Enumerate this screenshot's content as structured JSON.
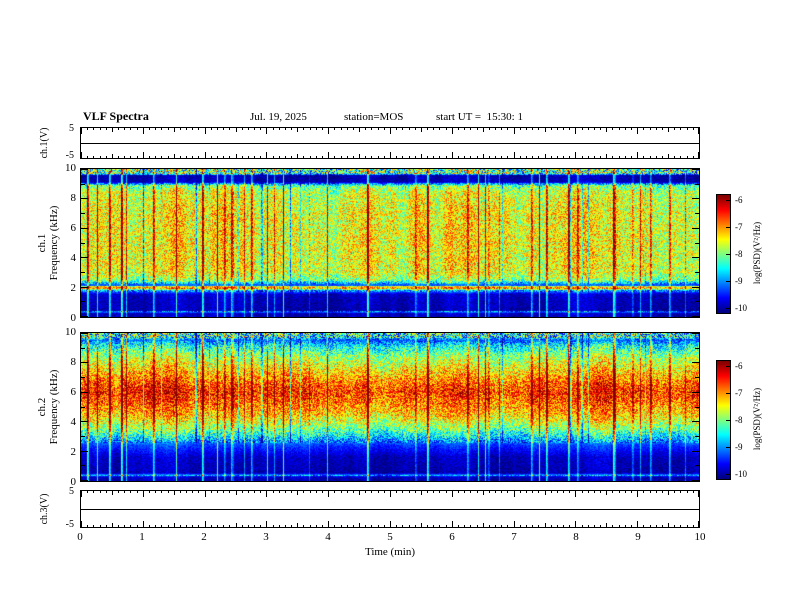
{
  "header": {
    "title": "VLF Spectra",
    "date": "Jul. 19, 2025",
    "station": "station=MOS",
    "start_ut": "start UT =  15:30: 1"
  },
  "panels": {
    "ch1_wave": {
      "label": "ch.1(V)",
      "y_top": "5",
      "y_bottom": "-5"
    },
    "ch1_spec": {
      "channel": "ch.1",
      "ylabel": "Frequency (kHz)"
    },
    "ch2_spec": {
      "channel": "ch.2",
      "ylabel": "Frequency (kHz)"
    },
    "ch3_wave": {
      "label": "ch.3(V)",
      "y_top": "5",
      "y_bottom": "-5"
    }
  },
  "xaxis": {
    "label": "Time (min)",
    "ticks": [
      "0",
      "1",
      "2",
      "3",
      "4",
      "5",
      "6",
      "7",
      "8",
      "9",
      "10"
    ]
  },
  "spec_yticks": [
    "10",
    "8",
    "6",
    "4",
    "2",
    "0"
  ],
  "colorbar": {
    "label": "log(PSD)(V²/Hz)",
    "ticks": [
      "-6",
      "-7",
      "-8",
      "-9",
      "-10"
    ]
  },
  "chart_data": [
    {
      "id": "ch1-waveform",
      "type": "line",
      "ylabel": "ch.1(V)",
      "xlim": [
        0,
        10
      ],
      "ylim": [
        -5,
        5
      ],
      "x": [
        0,
        10
      ],
      "y": [
        0,
        0
      ],
      "note": "flat trace near 0 V for full 10 min record"
    },
    {
      "id": "ch1-spectrogram",
      "type": "heatmap",
      "xlabel": "Time (min)",
      "ylabel": "Frequency (kHz)",
      "xlim": [
        0,
        10
      ],
      "ylim": [
        0,
        10
      ],
      "zlabel": "log(PSD)(V²/Hz)",
      "zlim": [
        -10.2,
        -5.8
      ],
      "colorbar_ticks": [
        -6,
        -7,
        -8,
        -9,
        -10
      ],
      "freq_profile_kHz": [
        0,
        0.25,
        0.3,
        0.4,
        1.5,
        1.8,
        1.88,
        2.02,
        2.12,
        2.45,
        3,
        5,
        7,
        8.5,
        8.9,
        9.15,
        9.6,
        9.72,
        10
      ],
      "logpsd_profile": [
        -10,
        -9.9,
        -8.7,
        -10,
        -9.9,
        -8.9,
        -7.1,
        -7.1,
        -9.5,
        -8.0,
        -7.55,
        -7.5,
        -7.5,
        -7.7,
        -8.1,
        -10,
        -10,
        -8.2,
        -8.2
      ],
      "narrowband_lines_kHz": [
        0.3,
        1.95
      ],
      "texture": "dense broadband vertical impulse streaks across whole band"
    },
    {
      "id": "ch2-spectrogram",
      "type": "heatmap",
      "xlabel": "Time (min)",
      "ylabel": "Frequency (kHz)",
      "xlim": [
        0,
        10
      ],
      "ylim": [
        0,
        10
      ],
      "zlabel": "log(PSD)(V²/Hz)",
      "zlim": [
        -10.2,
        -5.8
      ],
      "colorbar_ticks": [
        -6,
        -7,
        -8,
        -9,
        -10
      ],
      "freq_profile_kHz": [
        0,
        0.25,
        0.35,
        0.5,
        1.6,
        2.4,
        3,
        3.6,
        4.5,
        5.5,
        6,
        6.5,
        7.5,
        8.5,
        9.2,
        9.55,
        9.75,
        10
      ],
      "logpsd_profile": [
        -10,
        -9.9,
        -8.8,
        -10,
        -9.9,
        -9.4,
        -8.6,
        -7.9,
        -7.2,
        -6.7,
        -6.5,
        -6.7,
        -7.3,
        -7.9,
        -8.6,
        -9.3,
        -8.5,
        -8.5
      ],
      "narrowband_lines_kHz": [
        0.3
      ],
      "texture": "strong red band near 5-7 kHz, vertical impulse streaks down to 0 kHz"
    },
    {
      "id": "ch3-waveform",
      "type": "line",
      "ylabel": "ch.3(V)",
      "xlim": [
        0,
        10
      ],
      "ylim": [
        -5,
        5
      ],
      "x": [
        0,
        10
      ],
      "y": [
        0,
        0
      ],
      "note": "flat trace near 0 V for full 10 min record"
    }
  ]
}
